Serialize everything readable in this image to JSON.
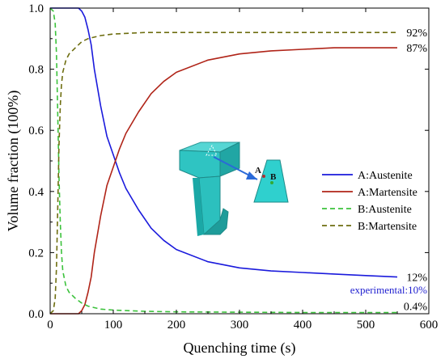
{
  "chart_data": {
    "type": "line",
    "xlabel": "Quenching time (s)",
    "ylabel": "Volume fraction (100%)",
    "xlim": [
      0,
      600
    ],
    "ylim": [
      0,
      1.0
    ],
    "x_ticks": [
      "0",
      "100",
      "200",
      "300",
      "400",
      "500",
      "600"
    ],
    "y_ticks": [
      "0.0",
      "0.2",
      "0.4",
      "0.6",
      "0.8",
      "1.0"
    ],
    "legend_position": "center-right",
    "series": [
      {
        "name": "A:Austenite",
        "color": "#1a1adc",
        "dash": "solid",
        "x": [
          0,
          30,
          45,
          50,
          55,
          60,
          65,
          70,
          80,
          90,
          100,
          110,
          120,
          140,
          160,
          180,
          200,
          250,
          300,
          350,
          400,
          450,
          500,
          550
        ],
        "y": [
          1.0,
          1.0,
          1.0,
          0.99,
          0.97,
          0.93,
          0.88,
          0.8,
          0.68,
          0.58,
          0.52,
          0.46,
          0.41,
          0.34,
          0.28,
          0.24,
          0.21,
          0.17,
          0.15,
          0.14,
          0.135,
          0.13,
          0.125,
          0.12
        ]
      },
      {
        "name": "A:Martensite",
        "color": "#b02418",
        "dash": "solid",
        "x": [
          0,
          30,
          45,
          50,
          55,
          60,
          65,
          70,
          80,
          90,
          100,
          110,
          120,
          140,
          160,
          180,
          200,
          250,
          300,
          350,
          400,
          450,
          500,
          550
        ],
        "y": [
          0,
          0,
          0,
          0.01,
          0.03,
          0.07,
          0.12,
          0.2,
          0.32,
          0.42,
          0.48,
          0.54,
          0.59,
          0.66,
          0.72,
          0.76,
          0.79,
          0.83,
          0.85,
          0.86,
          0.865,
          0.87,
          0.87,
          0.87
        ]
      },
      {
        "name": "B:Austenite",
        "color": "#3cc23c",
        "dash": "dashed",
        "x": [
          0,
          5,
          8,
          10,
          12,
          14,
          16,
          18,
          20,
          25,
          30,
          40,
          50,
          60,
          80,
          100,
          150,
          200,
          300,
          400,
          500,
          550
        ],
        "y": [
          1.0,
          0.99,
          0.95,
          0.85,
          0.65,
          0.45,
          0.3,
          0.2,
          0.14,
          0.09,
          0.07,
          0.05,
          0.035,
          0.025,
          0.015,
          0.012,
          0.008,
          0.006,
          0.005,
          0.004,
          0.004,
          0.004
        ]
      },
      {
        "name": "B:Martensite",
        "color": "#6e6e10",
        "dash": "dashed",
        "x": [
          0,
          5,
          8,
          10,
          12,
          14,
          16,
          18,
          20,
          25,
          30,
          40,
          50,
          60,
          80,
          100,
          150,
          200,
          300,
          400,
          500,
          550
        ],
        "y": [
          0,
          0.01,
          0.05,
          0.15,
          0.35,
          0.55,
          0.68,
          0.75,
          0.79,
          0.83,
          0.85,
          0.87,
          0.89,
          0.9,
          0.91,
          0.915,
          0.92,
          0.92,
          0.92,
          0.92,
          0.92,
          0.92
        ]
      }
    ],
    "annotations": [
      {
        "text": "92%",
        "x": 555,
        "y": 0.92
      },
      {
        "text": "87%",
        "x": 555,
        "y": 0.87
      },
      {
        "text": "12%",
        "x": 555,
        "y": 0.12
      },
      {
        "text": "experimental:10%",
        "x": 555,
        "y": 0.08,
        "color": "#1f1fcf"
      },
      {
        "text": "0.4%",
        "x": 555,
        "y": 0.025
      }
    ],
    "inset_labels": {
      "point_a": "A",
      "point_b": "B"
    }
  }
}
